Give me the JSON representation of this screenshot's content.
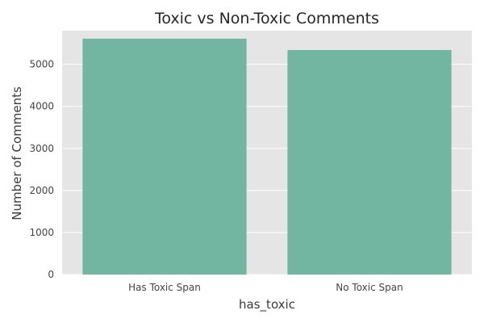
{
  "chart_data": {
    "type": "bar",
    "title": "Toxic vs Non-Toxic Comments",
    "xlabel": "has_toxic",
    "ylabel": "Number of Comments",
    "categories": [
      "Has Toxic Span",
      "No Toxic Span"
    ],
    "values": [
      5610,
      5340
    ],
    "ylim": [
      0,
      5800
    ],
    "yticks": [
      0,
      1000,
      2000,
      3000,
      4000,
      5000
    ],
    "grid": true,
    "colors": {
      "bar": "#72b6a1",
      "background": "#e5e5e5",
      "grid": "#ffffff"
    }
  }
}
